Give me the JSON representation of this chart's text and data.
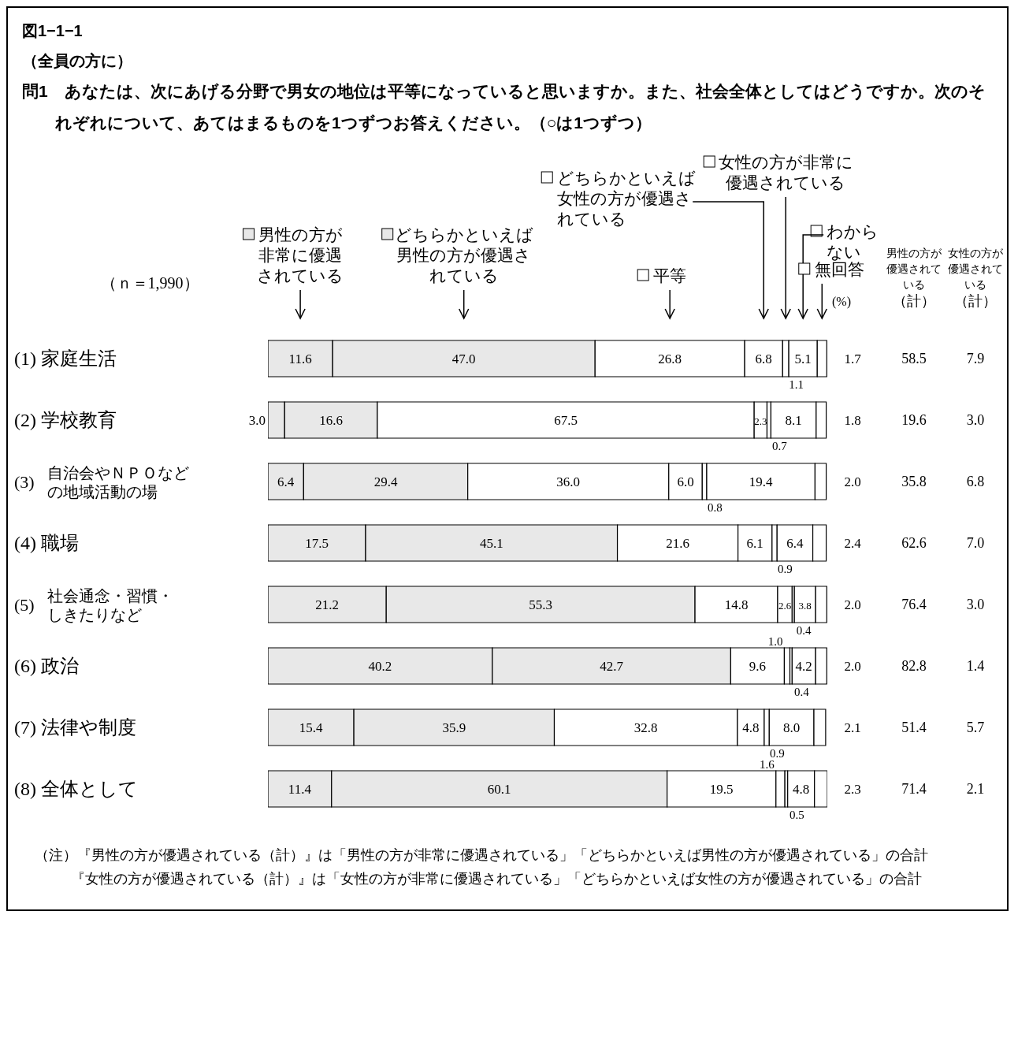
{
  "chart_data": {
    "type": "bar",
    "title": "図1−1−1",
    "subtitle": "（全員の方に）",
    "orientation": "horizontal",
    "stacked": true,
    "legend": "top",
    "categories": [
      "(1) 家庭生活",
      "(2) 学校教育",
      "(3) 自治会やＮＰＯなどの地域活動の場",
      "(4) 職場",
      "(5) 社会通念・習慣・しきたりなど",
      "(6) 政治",
      "(7) 法律や制度",
      "(8) 全体として"
    ],
    "series": [
      {
        "name": "男性の方が非常に優遇されている",
        "color": "#e8e8e8",
        "values": [
          11.6,
          3.0,
          6.4,
          17.5,
          21.2,
          40.2,
          15.4,
          11.4
        ],
        "value_labels": [
          "11.6",
          "3.0",
          "6.4",
          "17.5",
          "21.2",
          "40.2",
          "15.4",
          "11.4"
        ]
      },
      {
        "name": "どちらかといえば男性の方が優遇されている",
        "color": "#e8e8e8",
        "values": [
          47.0,
          16.6,
          29.4,
          45.1,
          55.3,
          42.7,
          35.9,
          60.1
        ],
        "value_labels": [
          "47.0",
          "16.6",
          "29.4",
          "45.1",
          "55.3",
          "42.7",
          "35.9",
          "60.1"
        ]
      },
      {
        "name": "平等",
        "color": "#ffffff",
        "values": [
          26.8,
          67.5,
          36.0,
          21.6,
          14.8,
          9.6,
          32.8,
          19.5
        ],
        "value_labels": [
          "26.8",
          "67.5",
          "36.0",
          "21.6",
          "14.8",
          "9.6",
          "32.8",
          "19.5"
        ]
      },
      {
        "name": "どちらかといえば女性の方が優遇されている",
        "color": "#ffffff",
        "values": [
          6.8,
          2.3,
          6.0,
          6.1,
          2.6,
          1.0,
          4.8,
          1.6
        ],
        "value_labels": [
          "6.8",
          "2.3",
          "6.0",
          "6.1",
          "2.6",
          "1.0",
          "4.8",
          "1.6"
        ]
      },
      {
        "name": "女性の方が非常に優遇されている",
        "color": "#ffffff",
        "values": [
          1.1,
          0.7,
          0.8,
          0.9,
          0.4,
          0.4,
          0.9,
          0.5
        ],
        "value_labels": [
          "1.1",
          "0.7",
          "0.8",
          "0.9",
          "0.4",
          "0.4",
          "0.9",
          "0.5"
        ]
      },
      {
        "name": "わからない",
        "color": "#ffffff",
        "values": [
          5.1,
          8.1,
          19.4,
          6.4,
          3.8,
          4.2,
          8.0,
          4.8
        ],
        "value_labels": [
          "5.1",
          "8.1",
          "19.4",
          "6.4",
          "3.8",
          "4.2",
          "8.0",
          "4.8"
        ]
      },
      {
        "name": "無回答",
        "color": "#ffffff",
        "values": [
          1.7,
          1.8,
          2.0,
          2.4,
          2.0,
          2.0,
          2.1,
          2.3
        ],
        "value_labels": [
          "1.7",
          "1.8",
          "2.0",
          "2.4",
          "2.0",
          "2.0",
          "2.1",
          "2.3"
        ]
      }
    ],
    "annotations": [
      "問1　あなたは、次にあげる分野で男女の地位は平等になっていると思いますか。また、社会全体としてはどうですか。次のそれぞれについて、あてはまるものを1つずつお答えください。（○は1つずつ）",
      "（ｎ＝1,990）",
      "(%)",
      "男性の方が優遇されている",
      "（計）",
      "女性の方が優遇されている",
      "（計）",
      "58.5",
      "19.6",
      "35.8",
      "62.6",
      "76.4",
      "82.8",
      "51.4",
      "71.4",
      "7.9",
      "3.0",
      "6.8",
      "7.0",
      "3.0",
      "1.4",
      "5.7",
      "2.1",
      "（注）『男性の方が優遇されている（計）』は「男性の方が非常に優遇されている」「どちらかといえば男性の方が優遇されている」の合計",
      "『女性の方が優遇されている（計）』は「女性の方が非常に優遇されている」「どちらかといえば女性の方が優遇されている」の合計"
    ]
  }
}
